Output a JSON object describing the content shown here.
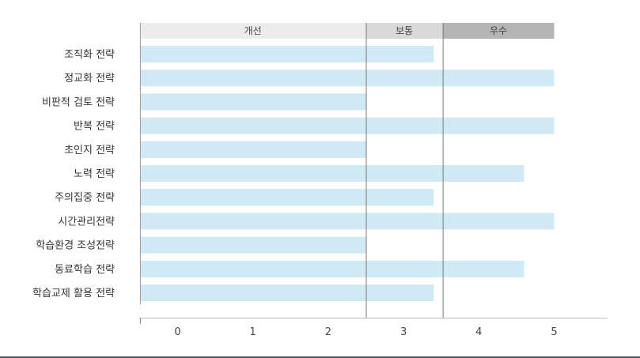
{
  "chart_data": {
    "type": "bar",
    "orientation": "horizontal",
    "categories": [
      "조직화 전략",
      "정교화 전략",
      "비판적 검토 전략",
      "반복 전략",
      "초인지 전략",
      "노력 전략",
      "주의집중 전략",
      "시간관리전략",
      "학습환경 조성전략",
      "동료학습 전략",
      "학습교제 활용 전략"
    ],
    "values": [
      3.4,
      5.0,
      2.5,
      5.0,
      2.5,
      4.6,
      3.4,
      5.0,
      2.5,
      4.6,
      3.4
    ],
    "xlim": [
      -0.5,
      5.75
    ],
    "xticks": [
      0,
      1,
      2,
      3,
      4,
      5
    ],
    "xlabel": "",
    "ylabel": "",
    "title": "",
    "grid": false,
    "bar_color": "#cfeaf5",
    "bands": [
      {
        "label": "개선",
        "from": -0.5,
        "to": 2.5,
        "color": "#ececec"
      },
      {
        "label": "보통",
        "from": 2.5,
        "to": 3.52,
        "color": "#d9d9d9"
      },
      {
        "label": "우수",
        "from": 3.52,
        "to": 5.0,
        "color": "#b5b5b5"
      }
    ],
    "thresholds": [
      2.5,
      3.52
    ]
  }
}
